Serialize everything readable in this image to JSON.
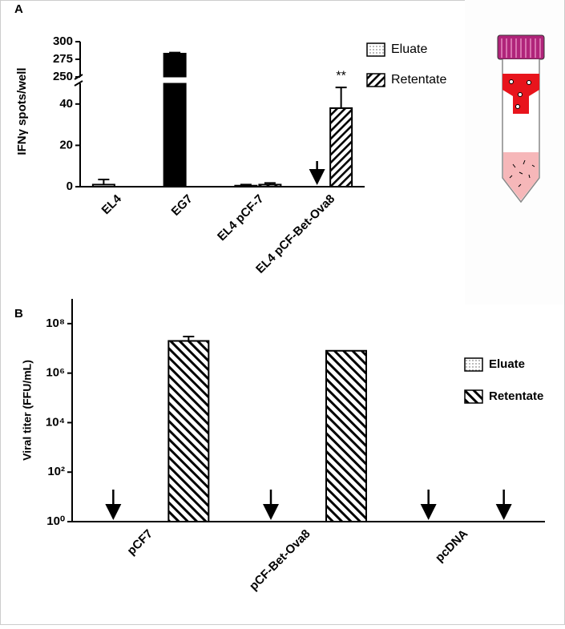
{
  "chart_data": [
    {
      "type": "bar",
      "label": "A",
      "ylabel": "IFNγ spots/well",
      "categories": [
        "EL4",
        "EG7",
        "EL4 pCF-7",
        "EL4 pCF-Bet-Ova8"
      ],
      "series": [
        {
          "name": "Eluate",
          "pattern": "dots",
          "point_colors": [
            null,
            "#000000",
            null,
            null
          ],
          "values": [
            1,
            283,
            0.5,
            0
          ],
          "errors": [
            2.5,
            1.5,
            0.5,
            null
          ]
        },
        {
          "name": "Retentate",
          "pattern": "hatch",
          "values": [
            null,
            null,
            1,
            38
          ],
          "errors": [
            null,
            null,
            0.8,
            10
          ]
        }
      ],
      "annotation": "**",
      "ylim": [
        0,
        300
      ],
      "axis_break": [
        50,
        250
      ],
      "yticks": [
        0,
        20,
        40,
        250,
        275,
        300
      ],
      "grid": false
    },
    {
      "type": "bar",
      "label": "B",
      "ylabel": "Viral titer (FFU/mL)",
      "log_scale": true,
      "categories": [
        "pCF7",
        "pCF-Bet-Ova8",
        "pcDNA"
      ],
      "series": [
        {
          "name": "Eluate",
          "pattern": "dots",
          "values": [
            0,
            0,
            0
          ]
        },
        {
          "name": "Retentate",
          "pattern": "hatch-reverse",
          "values": [
            20000000,
            8000000,
            0
          ],
          "errors": [
            10000000,
            null,
            null
          ]
        }
      ],
      "ylim": [
        1,
        1000000000
      ],
      "yticks": [
        {
          "value": 1,
          "label": "10⁰"
        },
        {
          "value": 100,
          "label": "10²"
        },
        {
          "value": 10000,
          "label": "10⁴"
        },
        {
          "value": 1000000,
          "label": "10⁶"
        },
        {
          "value": 100000000,
          "label": "10⁸"
        }
      ],
      "grid": false
    }
  ]
}
